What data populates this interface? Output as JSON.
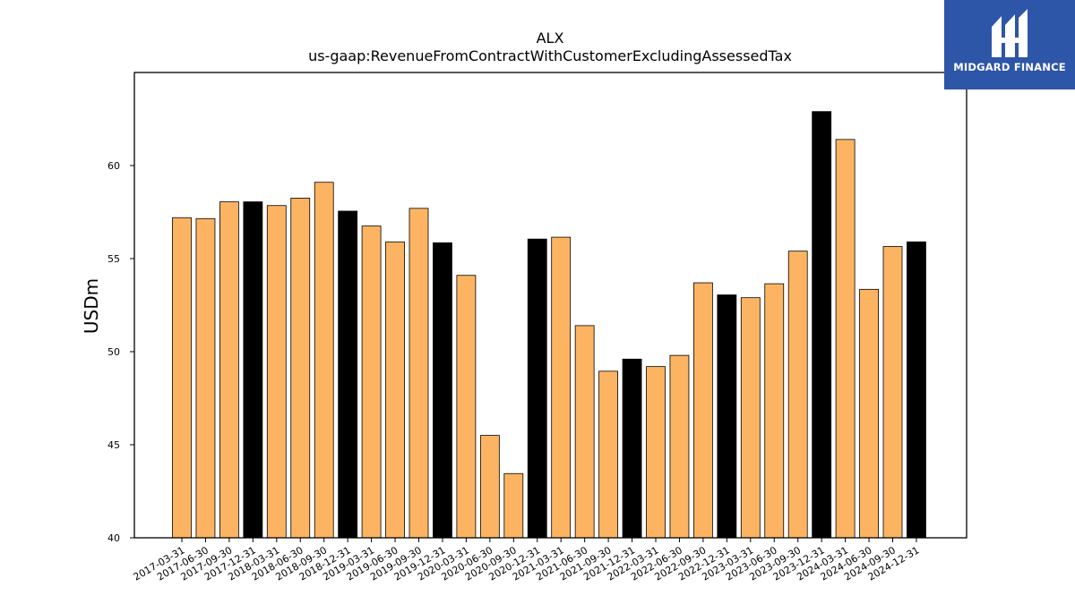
{
  "chart_data": {
    "type": "bar",
    "title": "ALX",
    "subtitle": "us-gaap:RevenueFromContractWithCustomerExcludingAssessedTax",
    "xlabel": "",
    "ylabel": "USDm",
    "ylim": [
      40,
      65
    ],
    "yticks": [
      40,
      45,
      50,
      55,
      60
    ],
    "grid": false,
    "categories": [
      "2017-03-31",
      "2017-06-30",
      "2017-09-30",
      "2017-12-31",
      "2018-03-31",
      "2018-06-30",
      "2018-09-30",
      "2018-12-31",
      "2019-03-31",
      "2019-06-30",
      "2019-09-30",
      "2019-12-31",
      "2020-03-31",
      "2020-06-30",
      "2020-09-30",
      "2020-12-31",
      "2021-03-31",
      "2021-06-30",
      "2021-09-30",
      "2021-12-31",
      "2022-03-31",
      "2022-06-30",
      "2022-09-30",
      "2022-12-31",
      "2023-03-31",
      "2023-06-30",
      "2023-09-30",
      "2023-12-31",
      "2024-03-31",
      "2024-06-30",
      "2024-09-30",
      "2024-12-31"
    ],
    "values": [
      57.2,
      57.15,
      58.05,
      58.05,
      57.85,
      58.25,
      59.1,
      57.55,
      56.75,
      55.9,
      57.7,
      55.85,
      54.1,
      45.5,
      43.45,
      56.05,
      56.15,
      51.4,
      48.95,
      49.6,
      49.2,
      49.8,
      53.7,
      53.05,
      52.9,
      53.65,
      55.4,
      62.9,
      61.4,
      53.35,
      55.65,
      55.9
    ],
    "colors": {
      "quarter": "#fdb462",
      "year_end": "#000000",
      "edge": "#000000"
    }
  },
  "logo": {
    "text": "MIDGARD FINANCE",
    "icon": "midgard-logo-icon",
    "background": "#2d55a8"
  }
}
